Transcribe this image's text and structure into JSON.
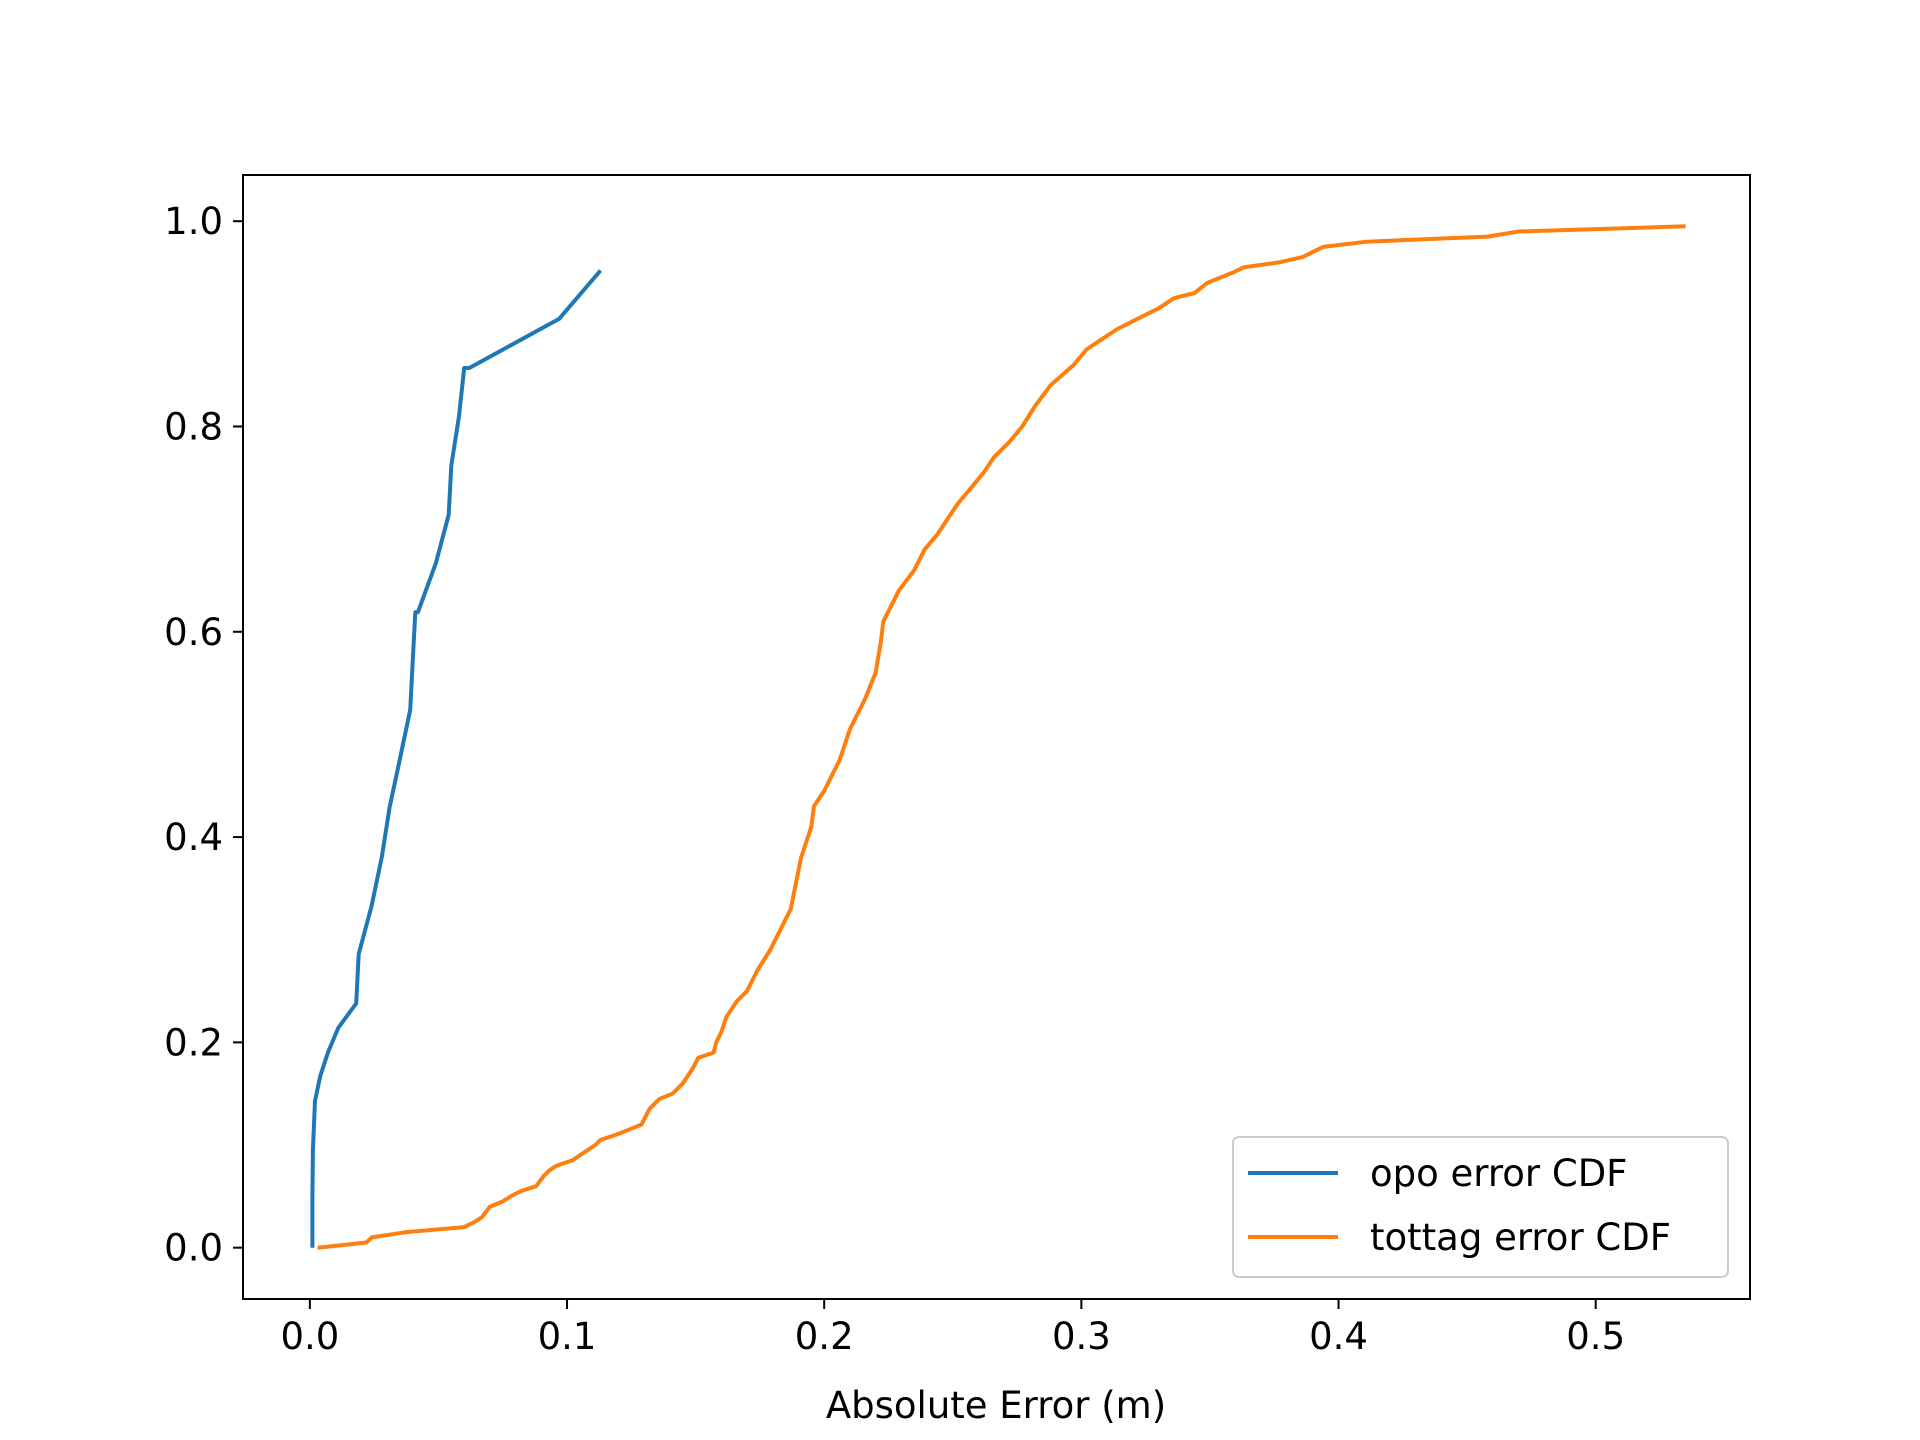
{
  "chart_data": {
    "type": "line",
    "title": "",
    "xlabel": "Absolute Error (m)",
    "ylabel": "",
    "xlim": [
      -0.026,
      0.56
    ],
    "ylim": [
      -0.05,
      1.045
    ],
    "xticks": [
      0.0,
      0.1,
      0.2,
      0.3,
      0.4,
      0.5
    ],
    "xtick_labels": [
      "0.0",
      "0.1",
      "0.2",
      "0.3",
      "0.4",
      "0.5"
    ],
    "yticks": [
      0.0,
      0.2,
      0.4,
      0.6,
      0.8,
      1.0
    ],
    "ytick_labels": [
      "0.0",
      "0.2",
      "0.4",
      "0.6",
      "0.8",
      "1.0"
    ],
    "grid": false,
    "legend_position": "lower-right",
    "series": [
      {
        "name": "opo error CDF",
        "color": "#1f77b4",
        "x": [
          0.001,
          0.001,
          0.0012,
          0.002,
          0.004,
          0.007,
          0.011,
          0.018,
          0.019,
          0.024,
          0.028,
          0.031,
          0.035,
          0.039,
          0.04,
          0.04,
          0.041,
          0.042,
          0.049,
          0.054,
          0.055,
          0.058,
          0.06,
          0.062,
          0.097,
          0.113
        ],
        "y": [
          0.0,
          0.048,
          0.095,
          0.143,
          0.167,
          0.19,
          0.214,
          0.238,
          0.286,
          0.333,
          0.381,
          0.429,
          0.476,
          0.524,
          0.571,
          0.571,
          0.619,
          0.619,
          0.667,
          0.714,
          0.762,
          0.81,
          0.857,
          0.857,
          0.905,
          0.952
        ]
      },
      {
        "name": "tottag error CDF",
        "color": "#ff7f0e",
        "x": [
          0.003,
          0.022,
          0.024,
          0.037,
          0.06,
          0.064,
          0.067,
          0.07,
          0.075,
          0.078,
          0.082,
          0.088,
          0.091,
          0.093,
          0.096,
          0.102,
          0.111,
          0.113,
          0.119,
          0.129,
          0.132,
          0.136,
          0.141,
          0.145,
          0.149,
          0.151,
          0.157,
          0.158,
          0.16,
          0.162,
          0.166,
          0.17,
          0.174,
          0.179,
          0.183,
          0.187,
          0.189,
          0.191,
          0.195,
          0.196,
          0.2,
          0.203,
          0.206,
          0.208,
          0.21,
          0.213,
          0.216,
          0.22,
          0.222,
          0.223,
          0.226,
          0.229,
          0.235,
          0.239,
          0.244,
          0.248,
          0.252,
          0.257,
          0.262,
          0.266,
          0.272,
          0.277,
          0.282,
          0.288,
          0.297,
          0.302,
          0.308,
          0.314,
          0.322,
          0.33,
          0.336,
          0.344,
          0.349,
          0.359,
          0.363,
          0.377,
          0.386,
          0.394,
          0.411,
          0.458,
          0.47,
          0.535
        ],
        "y": [
          0.0,
          0.005,
          0.01,
          0.015,
          0.02,
          0.025,
          0.03,
          0.04,
          0.045,
          0.05,
          0.055,
          0.06,
          0.07,
          0.075,
          0.08,
          0.085,
          0.1,
          0.105,
          0.11,
          0.12,
          0.135,
          0.145,
          0.15,
          0.16,
          0.175,
          0.185,
          0.19,
          0.2,
          0.21,
          0.225,
          0.24,
          0.25,
          0.27,
          0.29,
          0.31,
          0.33,
          0.355,
          0.38,
          0.41,
          0.43,
          0.445,
          0.46,
          0.475,
          0.49,
          0.505,
          0.52,
          0.535,
          0.56,
          0.59,
          0.61,
          0.625,
          0.64,
          0.66,
          0.68,
          0.695,
          0.71,
          0.725,
          0.74,
          0.755,
          0.77,
          0.785,
          0.8,
          0.82,
          0.84,
          0.86,
          0.875,
          0.885,
          0.895,
          0.905,
          0.915,
          0.925,
          0.93,
          0.94,
          0.95,
          0.955,
          0.96,
          0.965,
          0.975,
          0.98,
          0.985,
          0.99,
          0.995
        ]
      }
    ]
  }
}
